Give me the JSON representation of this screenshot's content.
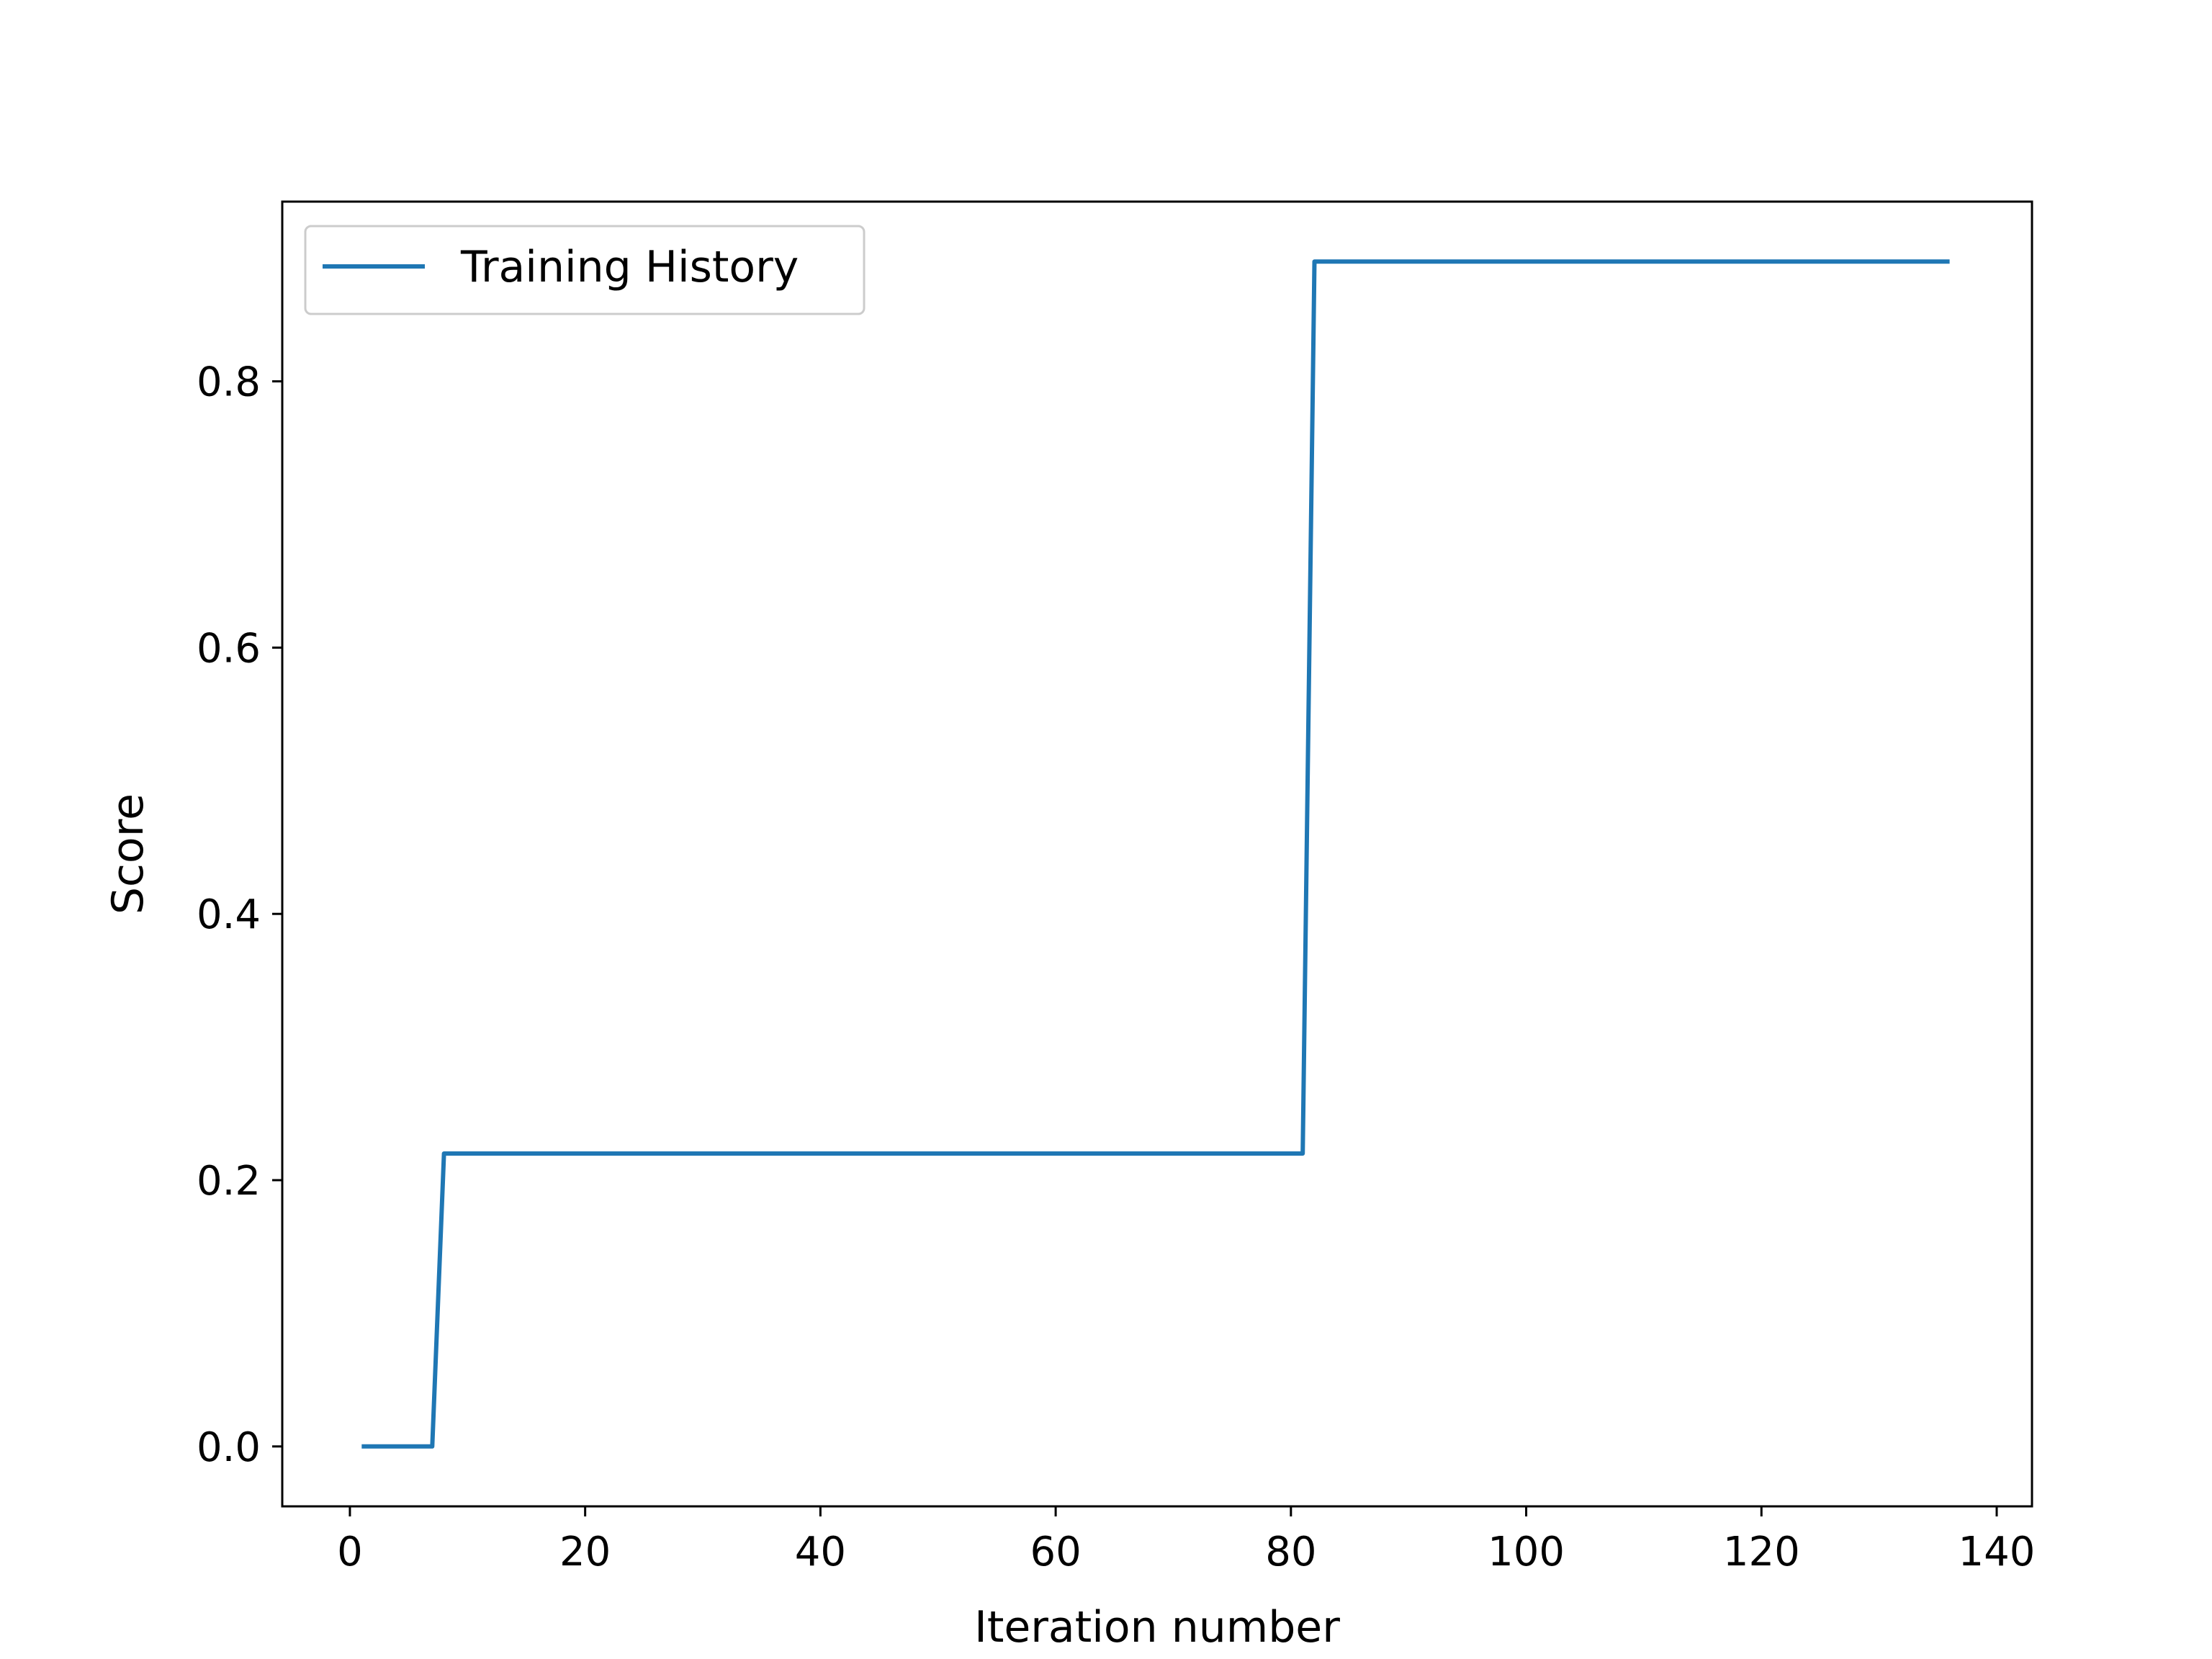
{
  "chart_data": {
    "type": "line",
    "title": "",
    "xlabel": "Iteration number",
    "ylabel": "Score",
    "xlim": [
      -5.75,
      143.0
    ],
    "ylim": [
      -0.045,
      0.935
    ],
    "xticks": [
      0,
      20,
      40,
      60,
      80,
      100,
      120,
      140
    ],
    "xtick_labels": [
      "0",
      "20",
      "40",
      "60",
      "80",
      "100",
      "120",
      "140"
    ],
    "yticks": [
      0.0,
      0.2,
      0.4,
      0.6,
      0.8
    ],
    "ytick_labels": [
      "0.0",
      "0.2",
      "0.4",
      "0.6",
      "0.8"
    ],
    "grid": false,
    "legend": {
      "position": "upper left"
    },
    "series": [
      {
        "name": "Training History",
        "color": "#1f77b4",
        "x": [
          1,
          7,
          8,
          81,
          82,
          136
        ],
        "y": [
          0.0,
          0.0,
          0.22,
          0.22,
          0.89,
          0.89
        ]
      }
    ]
  }
}
